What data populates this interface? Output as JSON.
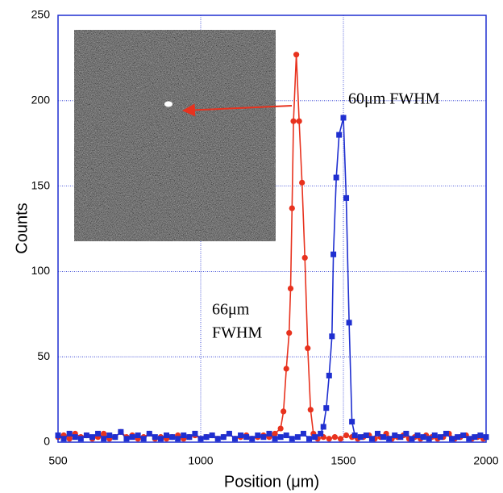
{
  "chart_data": {
    "type": "scatter",
    "xlabel": "Position (μm)",
    "ylabel": "Counts",
    "annotations": [
      "60μm FWHM",
      "66μm",
      "FWHM"
    ],
    "xlim": [
      500,
      2000
    ],
    "xticks": [
      500,
      1000,
      1500,
      2000
    ],
    "ylim": [
      0,
      250
    ],
    "yticks": [
      0,
      50,
      100,
      150,
      200,
      250
    ],
    "grid": true,
    "series": [
      {
        "color": "#e8321e",
        "marker": "circle",
        "x": [
          500,
          520,
          540,
          560,
          580,
          600,
          620,
          640,
          660,
          680,
          700,
          720,
          740,
          760,
          780,
          800,
          820,
          840,
          860,
          880,
          900,
          920,
          940,
          960,
          980,
          1000,
          1020,
          1040,
          1060,
          1080,
          1100,
          1120,
          1140,
          1160,
          1180,
          1200,
          1220,
          1240,
          1260,
          1280,
          1290,
          1300,
          1310,
          1315,
          1320,
          1325,
          1335,
          1345,
          1355,
          1365,
          1375,
          1385,
          1395,
          1410,
          1430,
          1450,
          1470,
          1490,
          1510,
          1530,
          1550,
          1570,
          1590,
          1610,
          1630,
          1650,
          1670,
          1690,
          1710,
          1730,
          1750,
          1770,
          1790,
          1810,
          1830,
          1850,
          1870,
          1890,
          1910,
          1930,
          1950,
          1970,
          1990
        ],
        "values": [
          3,
          4,
          2,
          5,
          3,
          4,
          2,
          3,
          5,
          2,
          3,
          6,
          3,
          4,
          2,
          3,
          5,
          2,
          3,
          2,
          3,
          4,
          2,
          3,
          4,
          2,
          3,
          4,
          2,
          3,
          5,
          2,
          3,
          4,
          2,
          3,
          4,
          3,
          5,
          8,
          18,
          43,
          64,
          90,
          137,
          188,
          227,
          188,
          152,
          108,
          55,
          19,
          5,
          2,
          3,
          2,
          3,
          2,
          4,
          3,
          2,
          3,
          4,
          2,
          3,
          5,
          2,
          3,
          4,
          2,
          3,
          2,
          4,
          3,
          2,
          3,
          5,
          2,
          3,
          4,
          2,
          3,
          2
        ]
      },
      {
        "color": "#1f2fd0",
        "marker": "square",
        "x": [
          500,
          520,
          540,
          560,
          580,
          600,
          620,
          640,
          660,
          680,
          700,
          720,
          740,
          760,
          780,
          800,
          820,
          840,
          860,
          880,
          900,
          920,
          940,
          960,
          980,
          1000,
          1020,
          1040,
          1060,
          1080,
          1100,
          1120,
          1140,
          1160,
          1180,
          1200,
          1220,
          1240,
          1260,
          1280,
          1300,
          1320,
          1340,
          1360,
          1380,
          1400,
          1420,
          1430,
          1440,
          1450,
          1460,
          1465,
          1475,
          1485,
          1500,
          1510,
          1520,
          1530,
          1540,
          1560,
          1580,
          1600,
          1620,
          1640,
          1660,
          1680,
          1700,
          1720,
          1740,
          1760,
          1780,
          1800,
          1820,
          1840,
          1860,
          1880,
          1900,
          1920,
          1940,
          1960,
          1980,
          2000
        ],
        "values": [
          4,
          2,
          5,
          3,
          2,
          4,
          3,
          5,
          2,
          4,
          3,
          6,
          2,
          3,
          4,
          2,
          5,
          3,
          2,
          4,
          3,
          2,
          4,
          3,
          5,
          2,
          3,
          4,
          2,
          3,
          5,
          2,
          4,
          3,
          2,
          4,
          3,
          5,
          2,
          3,
          4,
          2,
          3,
          5,
          2,
          3,
          5,
          9,
          20,
          39,
          62,
          110,
          155,
          180,
          190,
          143,
          70,
          12,
          4,
          3,
          4,
          2,
          5,
          3,
          2,
          4,
          3,
          5,
          2,
          4,
          3,
          2,
          4,
          3,
          5,
          2,
          3,
          4,
          2,
          3,
          4,
          3
        ]
      }
    ]
  }
}
